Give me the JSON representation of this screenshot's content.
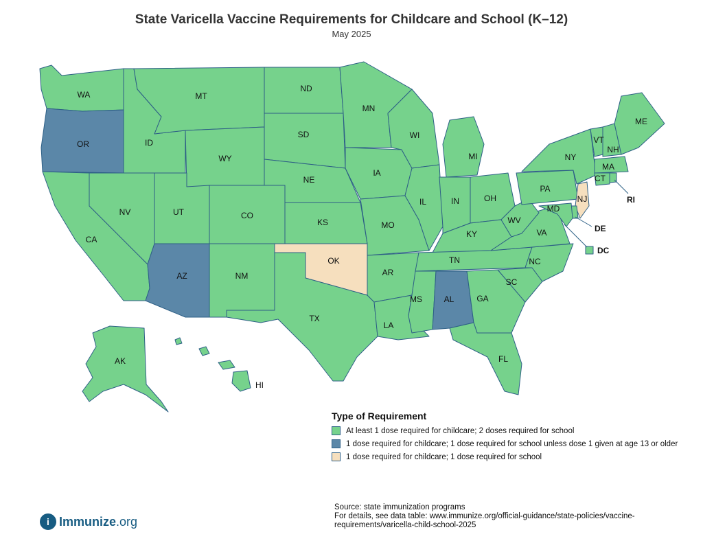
{
  "title": "State Varicella Vaccine Requirements for Childcare and School (K–12)",
  "subtitle": "May 2025",
  "colors": {
    "two_doses": "#76d28c",
    "one_dose_age13": "#5b87a8",
    "one_dose": "#f6dfbe",
    "border": "#2d5f86"
  },
  "legend": {
    "title": "Type of Requirement",
    "items": [
      {
        "label": "At least 1 dose required for childcare; 2 doses required for school",
        "category": "two_doses"
      },
      {
        "label": "1 dose required for childcare; 1 dose required for school unless dose 1 given at age 13 or older",
        "category": "one_dose_age13"
      },
      {
        "label": "1 dose required for childcare; 1 dose required for school",
        "category": "one_dose"
      }
    ]
  },
  "states": {
    "WA": "two_doses",
    "OR": "one_dose_age13",
    "CA": "two_doses",
    "ID": "two_doses",
    "NV": "two_doses",
    "MT": "two_doses",
    "WY": "two_doses",
    "UT": "two_doses",
    "AZ": "one_dose_age13",
    "CO": "two_doses",
    "NM": "two_doses",
    "ND": "two_doses",
    "SD": "two_doses",
    "NE": "two_doses",
    "KS": "two_doses",
    "OK": "one_dose",
    "TX": "two_doses",
    "MN": "two_doses",
    "IA": "two_doses",
    "MO": "two_doses",
    "AR": "two_doses",
    "LA": "two_doses",
    "WI": "two_doses",
    "IL": "two_doses",
    "MI": "two_doses",
    "IN": "two_doses",
    "OH": "two_doses",
    "KY": "two_doses",
    "TN": "two_doses",
    "MS": "two_doses",
    "AL": "one_dose_age13",
    "GA": "two_doses",
    "FL": "two_doses",
    "SC": "two_doses",
    "NC": "two_doses",
    "VA": "two_doses",
    "WV": "two_doses",
    "PA": "two_doses",
    "NY": "two_doses",
    "VT": "two_doses",
    "NH": "two_doses",
    "ME": "two_doses",
    "MA": "two_doses",
    "CT": "two_doses",
    "RI": "two_doses",
    "NJ": "one_dose",
    "DE": "two_doses",
    "MD": "two_doses",
    "DC": "two_doses",
    "AK": "two_doses",
    "HI": "two_doses"
  },
  "labels": {
    "WA": "WA",
    "OR": "OR",
    "CA": "CA",
    "ID": "ID",
    "NV": "NV",
    "MT": "MT",
    "WY": "WY",
    "UT": "UT",
    "AZ": "AZ",
    "CO": "CO",
    "NM": "NM",
    "ND": "ND",
    "SD": "SD",
    "NE": "NE",
    "KS": "KS",
    "OK": "OK",
    "TX": "TX",
    "MN": "MN",
    "IA": "IA",
    "MO": "MO",
    "AR": "AR",
    "LA": "LA",
    "WI": "WI",
    "IL": "IL",
    "MI": "MI",
    "IN": "IN",
    "OH": "OH",
    "KY": "KY",
    "TN": "TN",
    "MS": "MS",
    "AL": "AL",
    "GA": "GA",
    "FL": "FL",
    "SC": "SC",
    "NC": "NC",
    "VA": "VA",
    "WV": "WV",
    "PA": "PA",
    "NY": "NY",
    "VT": "VT",
    "NH": "NH",
    "ME": "ME",
    "MA": "MA",
    "CT": "CT",
    "NJ": "NJ",
    "MD": "MD",
    "AK": "AK",
    "HI": "HI",
    "RI": "RI",
    "DE": "DE",
    "DC": "DC"
  },
  "source": {
    "line1": "Source: state immunization programs",
    "line2": "For details, see data table: www.immunize.org/official-guidance/state-policies/vaccine-requirements/varicella-child-school-2025"
  },
  "logo": {
    "mark": "i",
    "name": "Immunize",
    "suffix": ".org"
  }
}
